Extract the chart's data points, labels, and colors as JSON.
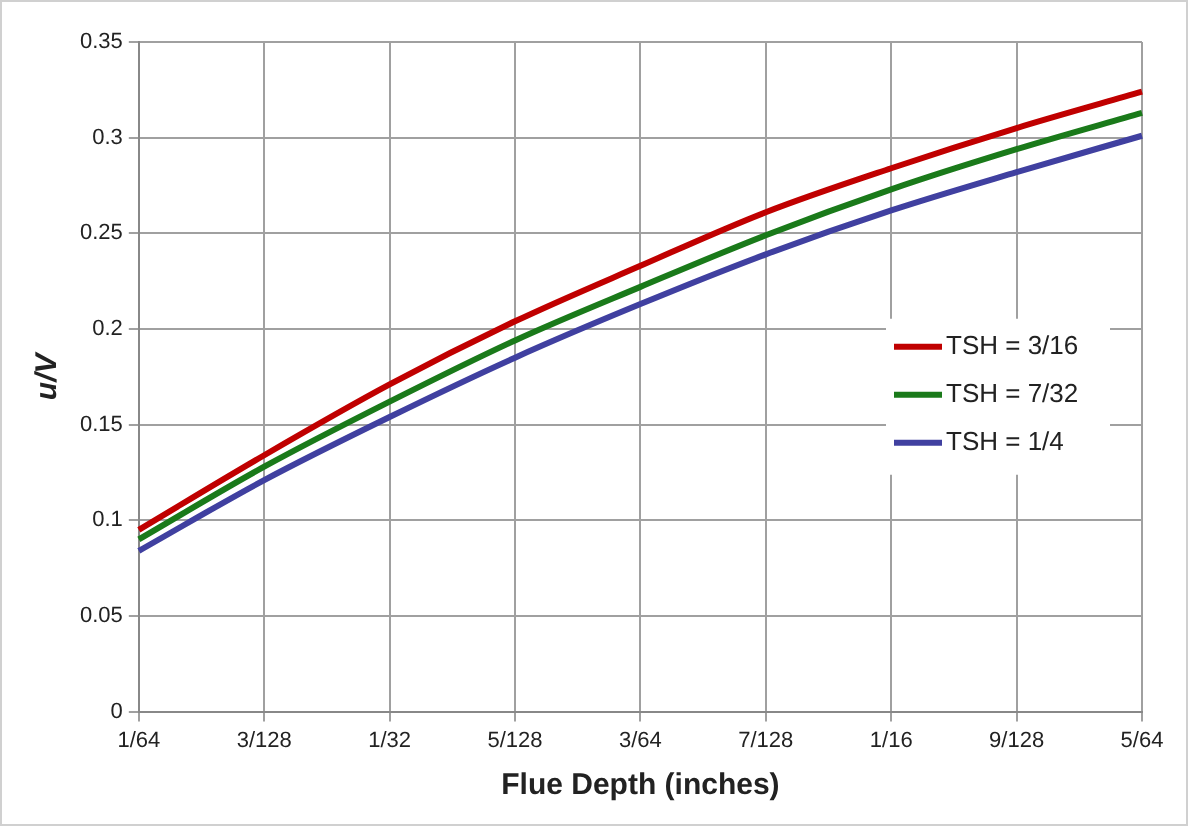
{
  "chart_data": {
    "type": "line",
    "xlabel": "Flue Depth (inches)",
    "ylabel": "u/V",
    "categories": [
      "1/64",
      "3/128",
      "1/32",
      "5/128",
      "3/64",
      "7/128",
      "1/16",
      "9/128",
      "5/64"
    ],
    "series": [
      {
        "name": "TSH = 3/16",
        "color": "#c00000",
        "values": [
          0.095,
          0.134,
          0.171,
          0.204,
          0.233,
          0.261,
          0.284,
          0.305,
          0.324
        ]
      },
      {
        "name": "TSH = 7/32",
        "color": "#1a7a1a",
        "values": [
          0.09,
          0.128,
          0.162,
          0.194,
          0.222,
          0.249,
          0.273,
          0.294,
          0.313
        ]
      },
      {
        "name": "TSH = 1/4",
        "color": "#4040a0",
        "values": [
          0.084,
          0.121,
          0.154,
          0.185,
          0.213,
          0.239,
          0.262,
          0.282,
          0.301
        ]
      }
    ],
    "ylim": [
      0,
      0.35
    ],
    "yticks": [
      0,
      0.05,
      0.1,
      0.15,
      0.2,
      0.25,
      0.3,
      0.35
    ],
    "grid": true,
    "legend": "right",
    "marker": "none",
    "line_style": "solid"
  }
}
